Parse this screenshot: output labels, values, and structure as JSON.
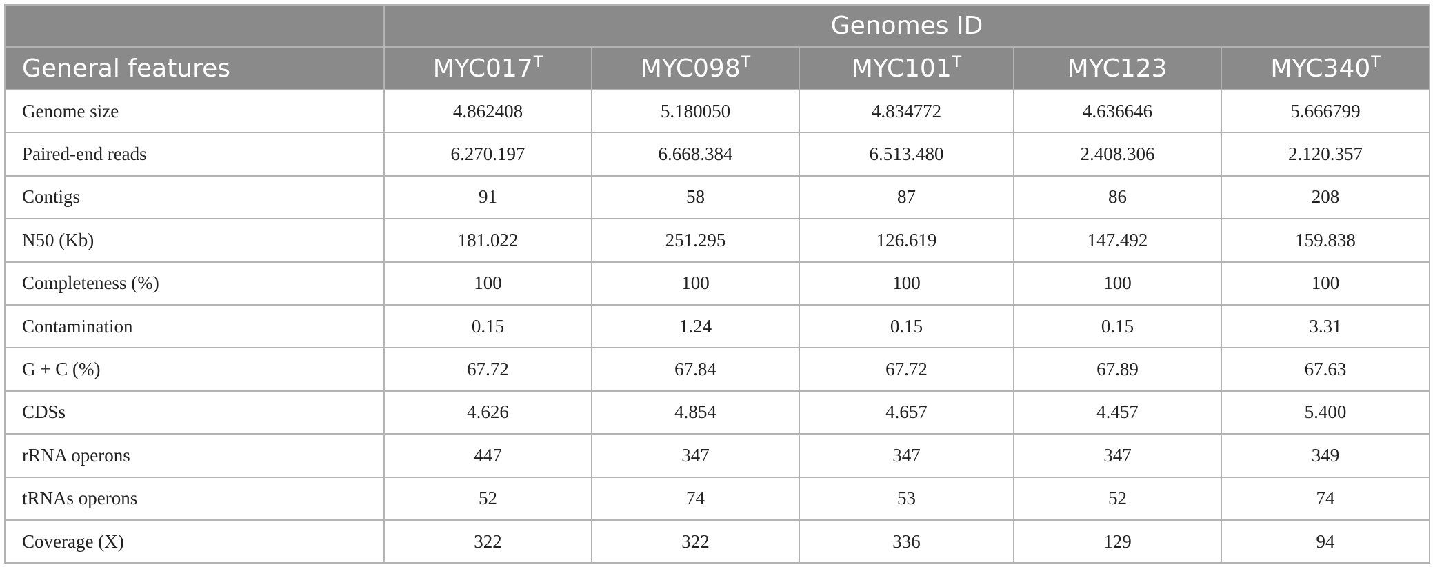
{
  "table": {
    "group_header": "Genomes ID",
    "row_header_label": "General features",
    "columns": [
      {
        "id": "MYC017",
        "sup": "T"
      },
      {
        "id": "MYC098",
        "sup": "T"
      },
      {
        "id": "MYC101",
        "sup": "T"
      },
      {
        "id": "MYC123",
        "sup": ""
      },
      {
        "id": "MYC340",
        "sup": "T"
      }
    ],
    "rows": [
      {
        "label": "Genome size",
        "values": [
          "4.862408",
          "5.180050",
          "4.834772",
          "4.636646",
          "5.666799"
        ]
      },
      {
        "label": "Paired-end reads",
        "values": [
          "6.270.197",
          "6.668.384",
          "6.513.480",
          "2.408.306",
          "2.120.357"
        ]
      },
      {
        "label": "Contigs",
        "values": [
          "91",
          "58",
          "87",
          "86",
          "208"
        ]
      },
      {
        "label": "N50 (Kb)",
        "values": [
          "181.022",
          "251.295",
          "126.619",
          "147.492",
          "159.838"
        ]
      },
      {
        "label": "Completeness (%)",
        "values": [
          "100",
          "100",
          "100",
          "100",
          "100"
        ]
      },
      {
        "label": "Contamination",
        "values": [
          "0.15",
          "1.24",
          "0.15",
          "0.15",
          "3.31"
        ]
      },
      {
        "label": "G + C (%)",
        "values": [
          "67.72",
          "67.84",
          "67.72",
          "67.89",
          "67.63"
        ]
      },
      {
        "label": "CDSs",
        "values": [
          "4.626",
          "4.854",
          "4.657",
          "4.457",
          "5.400"
        ]
      },
      {
        "label": "rRNA operons",
        "values": [
          "447",
          "347",
          "347",
          "347",
          "349"
        ]
      },
      {
        "label": "tRNAs operons",
        "values": [
          "52",
          "74",
          "53",
          "52",
          "74"
        ]
      },
      {
        "label": "Coverage (X)",
        "values": [
          "322",
          "322",
          "336",
          "129",
          "94"
        ]
      }
    ]
  }
}
